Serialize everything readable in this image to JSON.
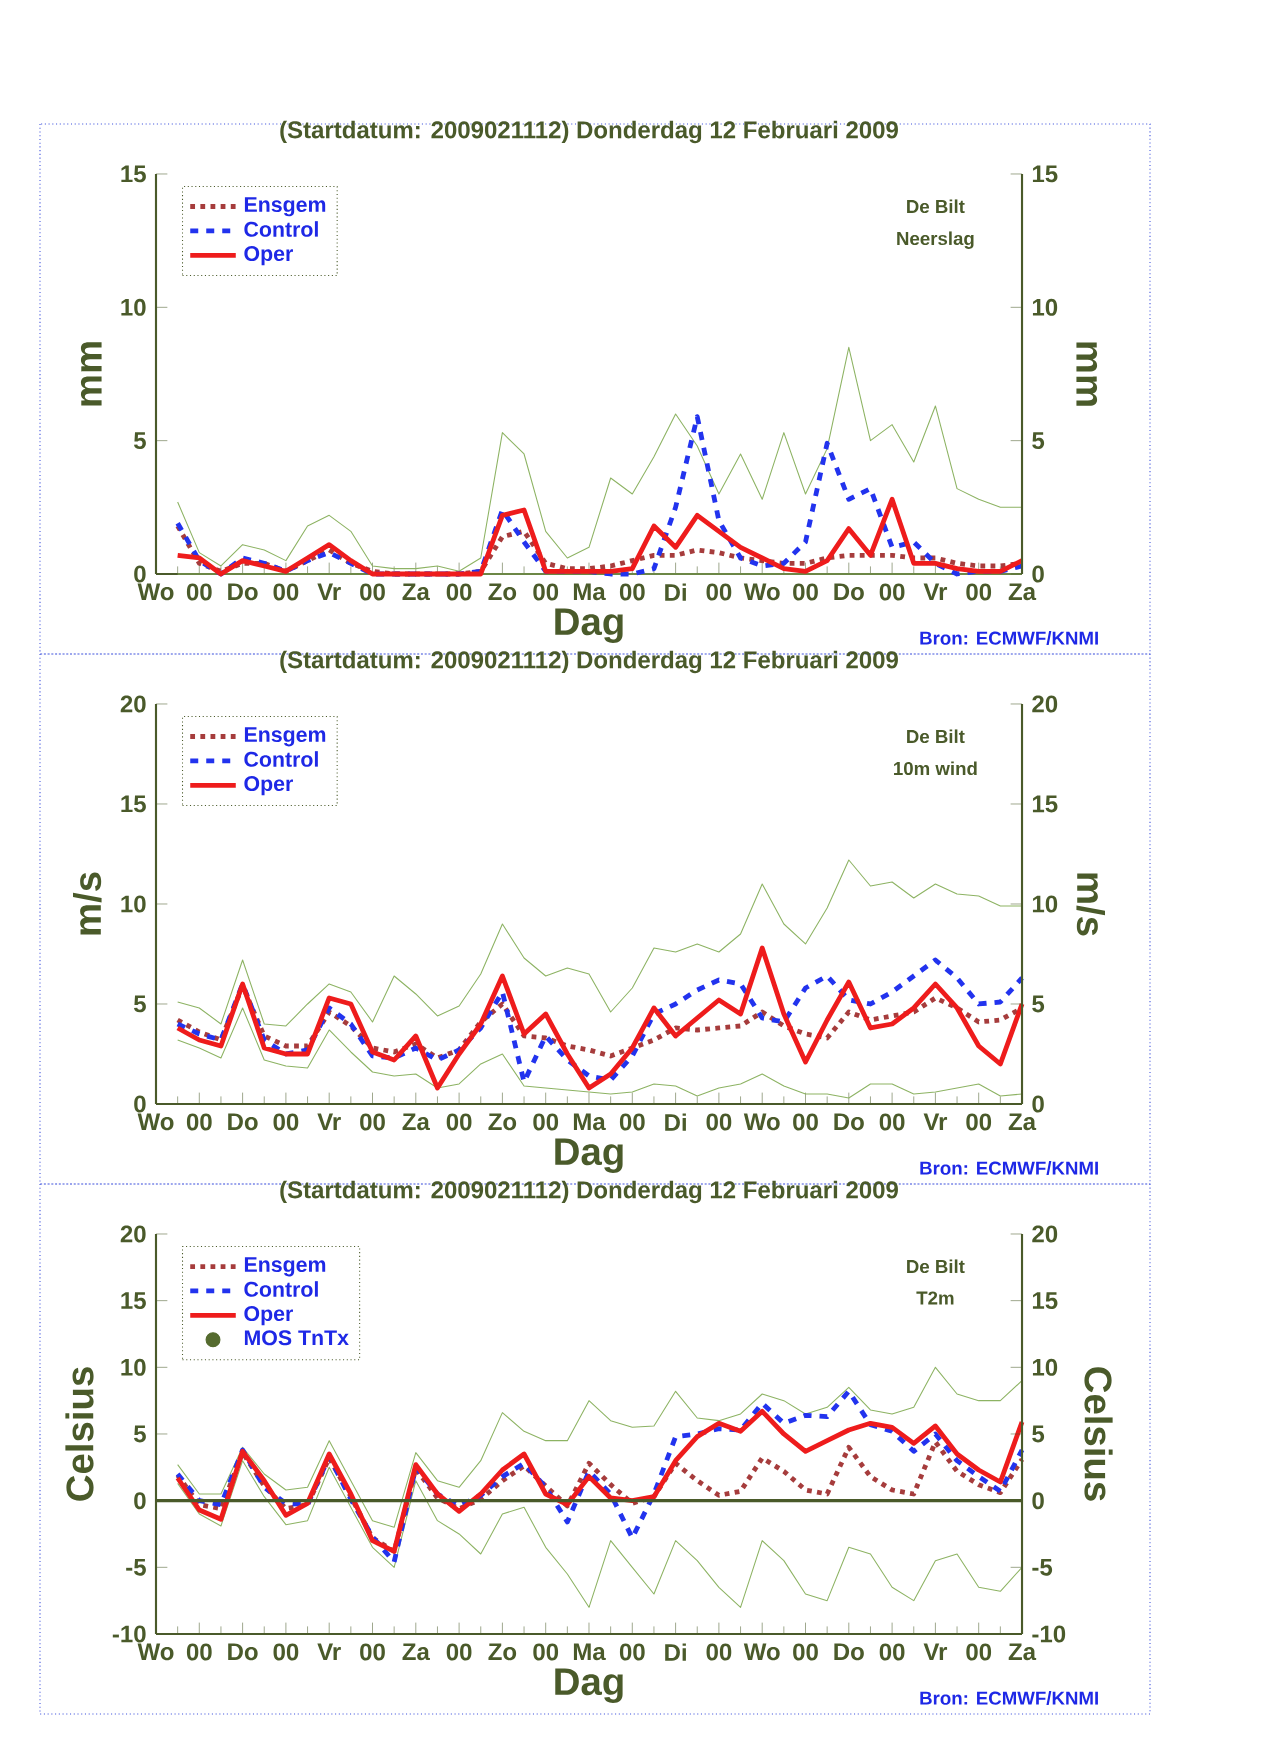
{
  "chart_data": [
    {
      "type": "line",
      "title": "(Startdatum: 2009021112)   Donderdag 12 Februari  2009",
      "xlabel": "Dag",
      "ylabel": "mm",
      "y2label": "mm",
      "annotations": [
        "De Bilt",
        "Neerslag",
        "Bron: ECMWF/KNMI"
      ],
      "categories": [
        "Wo",
        null,
        "00",
        null,
        "Do",
        null,
        "00",
        null,
        "Vr",
        null,
        "00",
        null,
        "Za",
        null,
        "00",
        null,
        "Zo",
        null,
        "00",
        null,
        "Ma",
        null,
        "00",
        null,
        "Di",
        null,
        "00",
        null,
        "Wo",
        null,
        "00",
        null,
        "Do",
        null,
        "00",
        null,
        "Vr",
        null,
        "00",
        null,
        "Za"
      ],
      "ylim": [
        0,
        15
      ],
      "yticks": [
        0,
        5,
        10,
        15
      ],
      "y2lim": [
        0,
        15
      ],
      "y2ticks": [
        0,
        5,
        10,
        15
      ],
      "legend": "top left",
      "series": [
        {
          "color": "#8db363",
          "line_style": "solid",
          "values": [
            null,
            2.7,
            0.8,
            0.3,
            1.1,
            0.9,
            0.5,
            1.8,
            2.2,
            1.6,
            0.3,
            0.2,
            0.2,
            0.3,
            0.1,
            0.6,
            5.3,
            4.5,
            1.6,
            0.6,
            1.0,
            3.6,
            3.0,
            4.4,
            6.0,
            4.8,
            3.0,
            4.5,
            2.8,
            5.3,
            3.0,
            4.7,
            8.5,
            5.0,
            5.6,
            4.2,
            6.3,
            3.2,
            2.8,
            2.5,
            2.5
          ]
        },
        {
          "color": "#8db363",
          "line_style": "solid",
          "values": [
            null,
            0,
            0,
            0,
            0,
            0,
            0,
            0,
            0,
            0,
            0,
            0,
            0,
            0,
            0,
            0,
            0,
            0,
            0,
            0,
            0,
            0,
            0,
            0,
            0,
            0,
            0,
            0,
            0,
            0,
            0,
            0,
            0,
            0,
            0,
            0,
            0,
            0,
            0,
            0,
            0
          ]
        },
        {
          "name": "Ensgem",
          "color": "#a63c3c",
          "line_style": "dotted",
          "values": [
            null,
            1.8,
            0.4,
            0.1,
            0.4,
            0.4,
            0.1,
            0.5,
            0.9,
            0.4,
            0.1,
            0,
            0,
            0,
            0,
            0.1,
            1.4,
            1.6,
            0.4,
            0.2,
            0.2,
            0.3,
            0.5,
            0.7,
            0.7,
            0.9,
            0.8,
            0.6,
            0.5,
            0.4,
            0.4,
            0.6,
            0.7,
            0.7,
            0.7,
            0.6,
            0.6,
            0.4,
            0.3,
            0.3,
            0.4
          ]
        },
        {
          "name": "Control",
          "color": "#2233ee",
          "line_style": "dashed",
          "values": [
            null,
            1.9,
            0.5,
            0,
            0.6,
            0.4,
            0.1,
            0.5,
            0.8,
            0.4,
            0,
            0,
            0,
            0,
            0,
            0.1,
            2.4,
            1.2,
            0.1,
            0.1,
            0.1,
            0,
            0,
            0.2,
            2.5,
            5.9,
            2.0,
            0.6,
            0.3,
            0.4,
            1.2,
            4.9,
            2.8,
            3.2,
            1.0,
            1.2,
            0.4,
            0,
            0.1,
            0.1,
            0.3
          ]
        },
        {
          "name": "Oper",
          "color": "#ee1c1c",
          "line_style": "solid",
          "values": [
            null,
            0.7,
            0.6,
            0,
            0.5,
            0.3,
            0.1,
            0.6,
            1.1,
            0.5,
            0,
            0,
            0,
            0,
            0,
            0,
            2.2,
            2.4,
            0.1,
            0.1,
            0.1,
            0.1,
            0.2,
            1.8,
            1.0,
            2.2,
            1.6,
            1.0,
            0.6,
            0.2,
            0.1,
            0.5,
            1.7,
            0.7,
            2.8,
            0.4,
            0.4,
            0.2,
            0.1,
            0.1,
            0.5
          ]
        }
      ]
    },
    {
      "type": "line",
      "title": "(Startdatum: 2009021112)   Donderdag 12 Februari  2009",
      "xlabel": "Dag",
      "ylabel": "m/s",
      "y2label": "m/s",
      "annotations": [
        "De Bilt",
        "10m wind",
        "Bron: ECMWF/KNMI"
      ],
      "categories": [
        "Wo",
        null,
        "00",
        null,
        "Do",
        null,
        "00",
        null,
        "Vr",
        null,
        "00",
        null,
        "Za",
        null,
        "00",
        null,
        "Zo",
        null,
        "00",
        null,
        "Ma",
        null,
        "00",
        null,
        "Di",
        null,
        "00",
        null,
        "Wo",
        null,
        "00",
        null,
        "Do",
        null,
        "00",
        null,
        "Vr",
        null,
        "00",
        null,
        "Za"
      ],
      "ylim": [
        0,
        20
      ],
      "yticks": [
        0,
        5,
        10,
        15,
        20
      ],
      "y2lim": [
        0,
        20
      ],
      "y2ticks": [
        0,
        5,
        10,
        15,
        20
      ],
      "legend": "top left",
      "series": [
        {
          "color": "#8db363",
          "line_style": "solid",
          "values": [
            null,
            5.1,
            4.8,
            4.0,
            7.2,
            4.0,
            3.9,
            5.0,
            6.0,
            5.6,
            4.1,
            6.4,
            5.5,
            4.4,
            4.9,
            6.5,
            9.0,
            7.3,
            6.4,
            6.8,
            6.5,
            4.6,
            5.8,
            7.8,
            7.6,
            8.0,
            7.6,
            8.5,
            11.0,
            9.0,
            8.0,
            9.8,
            12.2,
            10.9,
            11.1,
            10.3,
            11.0,
            10.5,
            10.4,
            9.9,
            9.9
          ]
        },
        {
          "color": "#8db363",
          "line_style": "solid",
          "values": [
            null,
            3.2,
            2.8,
            2.3,
            4.8,
            2.2,
            1.9,
            1.8,
            3.7,
            2.6,
            1.6,
            1.4,
            1.5,
            0.8,
            1.0,
            2.0,
            2.5,
            0.9,
            0.8,
            0.7,
            0.6,
            0.5,
            0.6,
            1.0,
            0.9,
            0.4,
            0.8,
            1.0,
            1.5,
            0.9,
            0.5,
            0.5,
            0.3,
            1.0,
            1.0,
            0.5,
            0.6,
            0.8,
            1.0,
            0.4,
            0.5
          ]
        },
        {
          "name": "Ensgem",
          "color": "#a63c3c",
          "line_style": "dotted",
          "values": [
            null,
            4.2,
            3.6,
            3.2,
            5.9,
            3.4,
            2.9,
            2.9,
            4.6,
            3.9,
            2.8,
            2.6,
            3.0,
            2.3,
            2.7,
            4.1,
            5.0,
            3.4,
            3.3,
            2.9,
            2.7,
            2.4,
            2.8,
            3.2,
            3.8,
            3.7,
            3.8,
            3.9,
            4.6,
            3.9,
            3.5,
            3.3,
            4.6,
            4.2,
            4.4,
            4.6,
            5.3,
            4.8,
            4.1,
            4.2,
            4.8
          ]
        },
        {
          "name": "Control",
          "color": "#2233ee",
          "line_style": "dashed",
          "values": [
            null,
            4.0,
            3.5,
            3.2,
            6.0,
            3.2,
            2.5,
            2.7,
            4.8,
            4.0,
            2.4,
            2.3,
            2.8,
            2.2,
            2.7,
            3.8,
            5.6,
            1.1,
            3.4,
            2.2,
            1.4,
            1.2,
            2.4,
            4.5,
            5.0,
            5.7,
            6.2,
            6.0,
            4.3,
            4.1,
            5.8,
            6.4,
            5.2,
            5.0,
            5.6,
            6.4,
            7.2,
            6.3,
            5.0,
            5.1,
            6.3
          ]
        },
        {
          "name": "Oper",
          "color": "#ee1c1c",
          "line_style": "solid",
          "values": [
            null,
            3.8,
            3.2,
            2.9,
            6.0,
            2.8,
            2.5,
            2.5,
            5.3,
            5.0,
            2.6,
            2.2,
            3.4,
            0.8,
            2.5,
            4.0,
            6.4,
            3.5,
            4.5,
            2.5,
            0.8,
            1.5,
            2.8,
            4.8,
            3.4,
            4.3,
            5.2,
            4.5,
            7.8,
            4.5,
            2.1,
            4.2,
            6.1,
            3.8,
            4.0,
            4.8,
            6.0,
            4.8,
            2.9,
            2.0,
            5.0
          ]
        }
      ]
    },
    {
      "type": "line",
      "title": "(Startdatum: 2009021112)   Donderdag 12 Februari  2009",
      "xlabel": "Dag",
      "ylabel": "Celsius",
      "y2label": "Celsius",
      "annotations": [
        "De Bilt",
        "T2m",
        "Bron: ECMWF/KNMI"
      ],
      "categories": [
        "Wo",
        null,
        "00",
        null,
        "Do",
        null,
        "00",
        null,
        "Vr",
        null,
        "00",
        null,
        "Za",
        null,
        "00",
        null,
        "Zo",
        null,
        "00",
        null,
        "Ma",
        null,
        "00",
        null,
        "Di",
        null,
        "00",
        null,
        "Wo",
        null,
        "00",
        null,
        "Do",
        null,
        "00",
        null,
        "Vr",
        null,
        "00",
        null,
        "Za"
      ],
      "ylim": [
        -10,
        20
      ],
      "yticks": [
        -10,
        -5,
        0,
        5,
        10,
        15,
        20
      ],
      "y2lim": [
        -10,
        20
      ],
      "y2ticks": [
        -10,
        -5,
        0,
        5,
        10,
        15,
        20
      ],
      "legend": "top left",
      "ref_lines": [
        {
          "axis": "y",
          "value": 0,
          "color": "#4a5a2a"
        }
      ],
      "series": [
        {
          "color": "#8db363",
          "line_style": "solid",
          "values": [
            null,
            2.7,
            0.5,
            0.5,
            4.0,
            2.0,
            0.8,
            1.0,
            4.5,
            1.5,
            -1.5,
            -2.0,
            3.6,
            1.5,
            1.0,
            3.0,
            6.6,
            5.2,
            4.5,
            4.5,
            7.5,
            6.0,
            5.5,
            5.6,
            8.2,
            6.2,
            6.0,
            6.5,
            8.0,
            7.5,
            6.5,
            7.0,
            8.5,
            6.8,
            6.5,
            7.0,
            10.0,
            8.0,
            7.5,
            7.5,
            9.0
          ]
        },
        {
          "color": "#8db363",
          "line_style": "solid",
          "values": [
            null,
            1.3,
            -1.0,
            -1.9,
            3.0,
            0.3,
            -1.8,
            -1.5,
            2.5,
            -0.5,
            -3.5,
            -5.0,
            1.5,
            -1.5,
            -2.5,
            -4.0,
            -1.0,
            -0.5,
            -3.5,
            -5.5,
            -8.0,
            -3.0,
            -5.0,
            -7.0,
            -3.0,
            -4.5,
            -6.5,
            -8.0,
            -3.0,
            -4.5,
            -7.0,
            -7.5,
            -3.5,
            -4.0,
            -6.5,
            -7.5,
            -4.5,
            -4.0,
            -6.5,
            -6.8,
            -5.0
          ]
        },
        {
          "name": "Ensgem",
          "color": "#a63c3c",
          "line_style": "dotted",
          "values": [
            null,
            1.9,
            -0.3,
            -0.6,
            3.6,
            1.1,
            -0.6,
            -0.3,
            3.2,
            0.3,
            -2.8,
            -3.8,
            2.4,
            0.2,
            -0.6,
            0.1,
            1.5,
            2.6,
            1.1,
            -0.4,
            2.8,
            1.2,
            -0.2,
            0.3,
            2.8,
            1.5,
            0.4,
            0.7,
            3.2,
            2.2,
            0.8,
            0.5,
            4.0,
            1.8,
            0.8,
            0.5,
            4.4,
            2.2,
            1.2,
            0.6,
            3.1
          ]
        },
        {
          "name": "Control",
          "color": "#2233ee",
          "line_style": "dashed",
          "values": [
            null,
            2.0,
            0,
            -0.3,
            3.8,
            1.0,
            -0.2,
            -0.3,
            3.3,
            0.1,
            -2.7,
            -4.6,
            2.5,
            0.5,
            -0.4,
            0.4,
            1.8,
            2.8,
            1.0,
            -1.6,
            2.2,
            0.5,
            -2.8,
            0.5,
            4.8,
            5.0,
            5.4,
            5.3,
            7.3,
            5.8,
            6.4,
            6.3,
            8.2,
            5.7,
            5.2,
            3.7,
            5.0,
            3.0,
            1.8,
            0.7,
            3.8
          ]
        },
        {
          "name": "Oper",
          "color": "#ee1c1c",
          "line_style": "solid",
          "values": [
            null,
            1.7,
            -0.7,
            -1.4,
            3.7,
            1.5,
            -1.1,
            -0.2,
            3.5,
            0.5,
            -3.0,
            -3.8,
            2.7,
            0.5,
            -0.8,
            0.5,
            2.3,
            3.5,
            0.5,
            -0.3,
            1.8,
            0.2,
            0,
            0.3,
            3.0,
            4.8,
            5.8,
            5.2,
            6.7,
            5.0,
            3.7,
            4.5,
            5.3,
            5.8,
            5.5,
            4.3,
            5.6,
            3.5,
            2.3,
            1.4,
            5.9
          ]
        },
        {
          "name": "MOS TnTx",
          "type": "scatter",
          "marker": "circle",
          "color": "#556b2f",
          "values": [
            null,
            null,
            null,
            null,
            null,
            null,
            null,
            null,
            null,
            null,
            null,
            null,
            null,
            null,
            null,
            null,
            null,
            null,
            null,
            null,
            null,
            null,
            null,
            null,
            null,
            null,
            null,
            null,
            null,
            null,
            null,
            null,
            null,
            null,
            null,
            null,
            null,
            null,
            null,
            null,
            null
          ]
        }
      ]
    }
  ]
}
